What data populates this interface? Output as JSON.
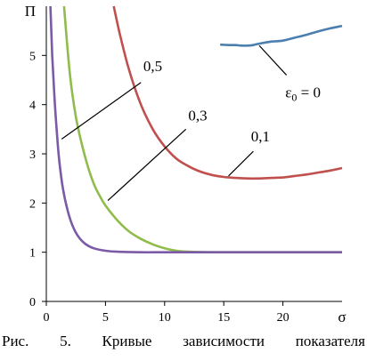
{
  "chart_data": {
    "type": "line",
    "xlabel": "σ",
    "ylabel": "П",
    "xlim": [
      0,
      25
    ],
    "ylim": [
      0,
      6
    ],
    "x_ticks": [
      0,
      5,
      10,
      15,
      20
    ],
    "y_ticks": [
      0,
      1,
      2,
      3,
      4,
      5
    ],
    "grid": false,
    "legend": "none",
    "series": [
      {
        "color": "#4a7fb0",
        "x": [
          14.7,
          15.5,
          16.0,
          16.5,
          17.0,
          17.5,
          18.0,
          19.0,
          20.0,
          21.0,
          22.0,
          23.0,
          24.0,
          25.0
        ],
        "y": [
          5.22,
          5.21,
          5.21,
          5.2,
          5.2,
          5.21,
          5.24,
          5.28,
          5.3,
          5.36,
          5.42,
          5.49,
          5.55,
          5.6
        ]
      },
      {
        "color": "#c0504d",
        "x": [
          5.7,
          6.2,
          7.0,
          8.0,
          9.0,
          10.0,
          11.0,
          12.0,
          13.0,
          14.0,
          15.0,
          16.0,
          17.0,
          18.0,
          19.0,
          20.0,
          21.0,
          22.0,
          23.0,
          24.0,
          25.0
        ],
        "y": [
          6.0,
          5.45,
          4.7,
          4.0,
          3.5,
          3.15,
          2.9,
          2.75,
          2.64,
          2.57,
          2.53,
          2.51,
          2.5,
          2.5,
          2.51,
          2.52,
          2.55,
          2.58,
          2.62,
          2.66,
          2.71
        ],
        "label": "0,1"
      },
      {
        "color": "#8fbc4a",
        "x": [
          1.5,
          2.0,
          2.5,
          3.0,
          3.5,
          4.0,
          4.5,
          5.0,
          6.0,
          7.0,
          8.0,
          9.0,
          10.0,
          11.0,
          12.0,
          14.0,
          17.0,
          20.0,
          25.0
        ],
        "y": [
          6.0,
          4.6,
          3.75,
          3.2,
          2.75,
          2.4,
          2.15,
          1.95,
          1.65,
          1.42,
          1.27,
          1.16,
          1.08,
          1.03,
          1.01,
          1.0,
          1.0,
          1.0,
          1.0
        ],
        "label": "0,3"
      },
      {
        "color": "#7b5aa6",
        "x": [
          0.35,
          0.5,
          0.7,
          0.9,
          1.1,
          1.4,
          1.8,
          2.2,
          2.7,
          3.3,
          4.0,
          5.0,
          6.0,
          8.0,
          10.0,
          15.0,
          20.0,
          25.0
        ],
        "y": [
          6.0,
          5.0,
          4.1,
          3.4,
          2.85,
          2.3,
          1.85,
          1.55,
          1.32,
          1.17,
          1.08,
          1.03,
          1.01,
          1.0,
          1.0,
          1.0,
          1.0,
          1.0
        ],
        "label": "0,5"
      }
    ],
    "annotations": [
      {
        "label_parts": [
          "ε",
          "0",
          " = 0"
        ],
        "text_pos": [
          20.2,
          4.15
        ],
        "pointer": [
          [
            18.0,
            5.2
          ],
          [
            20.3,
            4.6
          ]
        ]
      },
      {
        "text": "0,1",
        "text_pos": [
          17.3,
          3.25
        ],
        "pointer": [
          [
            15.4,
            2.55
          ],
          [
            17.5,
            3.05
          ]
        ]
      },
      {
        "text": "0,3",
        "text_pos": [
          12.0,
          3.68
        ],
        "pointer": [
          [
            5.2,
            2.05
          ],
          [
            11.8,
            3.5
          ]
        ]
      },
      {
        "text": "0,5",
        "text_pos": [
          8.2,
          4.68
        ],
        "pointer": [
          [
            1.3,
            3.3
          ],
          [
            8.0,
            4.45
          ]
        ]
      }
    ]
  },
  "caption": [
    "Рис.",
    "5.",
    "Кривые",
    "зависимости",
    "показателя"
  ]
}
